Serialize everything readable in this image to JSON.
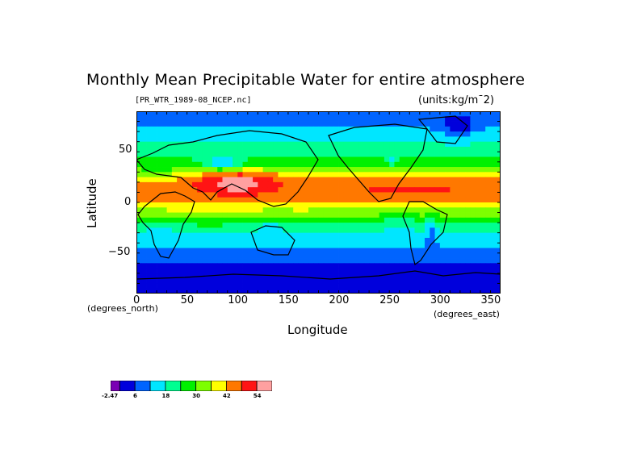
{
  "chart_data": {
    "type": "heatmap",
    "title": "Monthly Mean Precipitable Water for entire atmosphere",
    "subtitle": "[PR_WTR_1989-08_NCEP.nc]",
    "units": "(units:kg/m¯2)",
    "xlabel": "Longitude",
    "ylabel": "Latitude",
    "x_unit": "(degrees_east)",
    "y_unit": "(degrees_north)",
    "xlim": [
      0,
      360
    ],
    "ylim": [
      -90,
      90
    ],
    "xticks": [
      "0",
      "50",
      "100",
      "150",
      "200",
      "250",
      "300",
      "350"
    ],
    "xtick_values": [
      0,
      50,
      100,
      150,
      200,
      250,
      300,
      350
    ],
    "yticks": [
      "50",
      "0",
      "−50"
    ],
    "ytick_values": [
      50,
      0,
      -50
    ],
    "colorbar": {
      "levels": [
        -2.47,
        0,
        6,
        12,
        18,
        24,
        30,
        36,
        42,
        48,
        54,
        60
      ],
      "labels": [
        "-2.47",
        "6",
        "18",
        "30",
        "42",
        "54"
      ],
      "label_values": [
        -2.47,
        6,
        18,
        30,
        42,
        54
      ],
      "colors": [
        "#7a00b4",
        "#0000dc",
        "#0064ff",
        "#00e6ff",
        "#00ff91",
        "#00f000",
        "#7dff00",
        "#ffff00",
        "#ff7800",
        "#ff1414",
        "#ffa0a0"
      ]
    },
    "lat_band_means": {
      "lats": [
        85,
        75,
        65,
        55,
        45,
        35,
        25,
        15,
        5,
        -5,
        -15,
        -25,
        -35,
        -45,
        -55,
        -65,
        -75,
        -85
      ],
      "values": [
        7,
        11,
        16,
        19,
        23,
        30,
        42,
        46,
        44,
        38,
        30,
        22,
        16,
        12,
        8,
        4,
        2,
        1
      ]
    }
  }
}
